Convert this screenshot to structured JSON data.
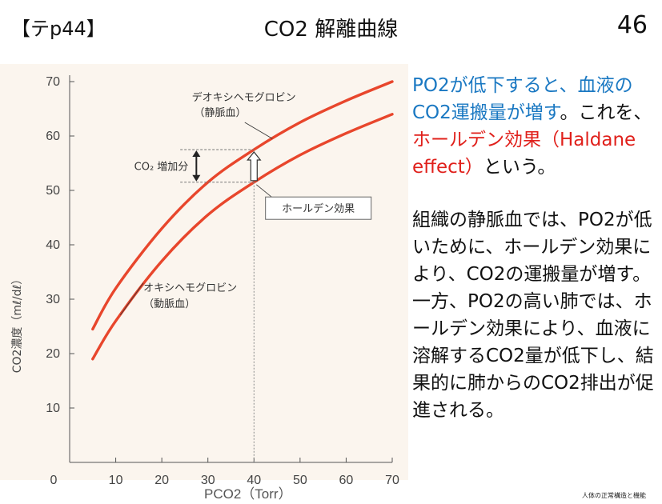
{
  "header": {
    "tag": "【テp44】",
    "title": "CO2 解離曲線",
    "page": "46"
  },
  "chart_data": {
    "type": "line",
    "xlabel": "PCO2（Torr）",
    "ylabel": "CO2濃度（mℓ/dℓ）",
    "xlim": [
      0,
      70
    ],
    "ylim": [
      0,
      70
    ],
    "x_ticks": [
      "0",
      "10",
      "20",
      "30",
      "40",
      "50",
      "60",
      "70"
    ],
    "y_ticks": [
      "10",
      "20",
      "30",
      "40",
      "50",
      "60",
      "70"
    ],
    "grid": false,
    "series": [
      {
        "name": "デオキシヘモグロビン（静脈血）",
        "color": "#e8462c",
        "x": [
          5,
          10,
          20,
          30,
          40,
          50,
          60,
          70
        ],
        "y": [
          24.5,
          32,
          43,
          51.5,
          57.5,
          62.5,
          66.5,
          70
        ]
      },
      {
        "name": "オキシヘモグロビン（動脈血）",
        "color": "#e8462c",
        "x": [
          5,
          10,
          20,
          30,
          40,
          50,
          60,
          70
        ],
        "y": [
          19,
          26,
          37,
          45.5,
          51.5,
          56.5,
          60.5,
          64
        ]
      }
    ],
    "annotations": {
      "deoxy_label_1": "デオキシヘモグロビン",
      "deoxy_label_2": "（静脈血）",
      "oxy_label_1": "オキシヘモグロビン",
      "oxy_label_2": "（動脈血）",
      "increase_label": "CO₂ 増加分",
      "haldane_box": "ホールデン効果",
      "marker_x": 40
    }
  },
  "notes": {
    "p1_a": "PO2が低下すると、血液の",
    "p1_b": "CO2運搬量が増す",
    "p1_c": "。これを、",
    "p1_d": "ホールデン効果（Haldane effect）",
    "p1_e": "という。",
    "p2": "組織の静脈血では、PO2が低いために、ホールデン効果により、CO2の運搬量が増す。一方、PO2の高い肺では、ホールデン効果により、血液に溶解するCO2量が低下し、結果的に肺からのCO2排出が促進される。"
  },
  "source": "人体の正常構造と機能"
}
